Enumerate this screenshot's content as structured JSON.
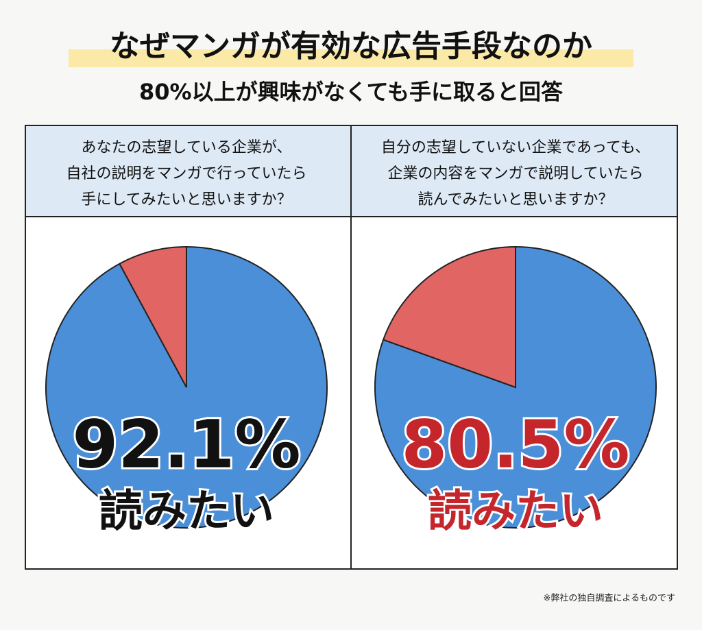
{
  "title": "なぜマンガが有効な広告手段なのか",
  "subtitle": "80%以上が興味がなくても手に取ると回答",
  "note": "※弊社の独自調査によるものです",
  "chart_data": [
    {
      "type": "pie",
      "question": [
        "あなたの志望している企業が、",
        "自社の説明をマンガで行っていたら",
        "手にしてみたいと思いますか？"
      ],
      "categories": [
        "読みたい",
        null
      ],
      "values": [
        92.1,
        7.9
      ],
      "value_labels": [
        "92.1%",
        null
      ],
      "colors": [
        "#4a8fd8",
        "#e06563"
      ],
      "label_color": "#111111"
    },
    {
      "type": "pie",
      "question": [
        "自分の志望していない企業であっても、",
        "企業の内容をマンガで説明していたら",
        "読んでみたいと思いますか？"
      ],
      "categories": [
        "読みたい",
        null
      ],
      "values": [
        80.5,
        19.5
      ],
      "value_labels": [
        "80.5%",
        null
      ],
      "colors": [
        "#4a8fd8",
        "#e06563"
      ],
      "label_color": "#c4262b"
    }
  ]
}
